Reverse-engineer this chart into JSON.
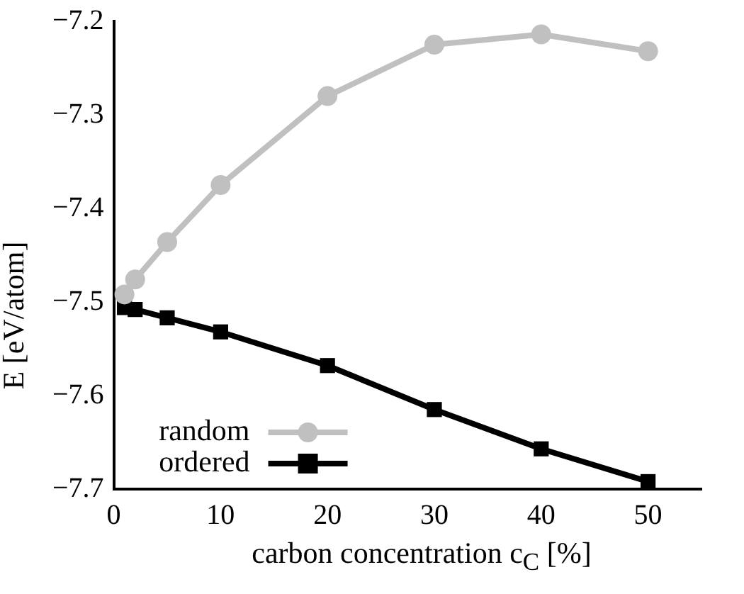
{
  "chart_data": {
    "type": "line",
    "xlabel": "carbon concentration c$_{C}$ [%]",
    "ylabel": "E [eV/atom]",
    "xlim": [
      0,
      55
    ],
    "xticks": [
      0,
      10,
      20,
      30,
      40,
      50
    ],
    "ylim": [
      -7.7,
      -7.2
    ],
    "yticks": [
      -7.7,
      -7.6,
      -7.5,
      -7.4,
      -7.3,
      -7.2
    ],
    "series": [
      {
        "name": "random",
        "color": "#c0c0c0",
        "marker": "circle",
        "x": [
          1,
          2,
          5,
          10,
          20,
          30,
          40,
          50
        ],
        "values": [
          -7.492,
          -7.476,
          -7.436,
          -7.375,
          -7.28,
          -7.225,
          -7.214,
          -7.232
        ]
      },
      {
        "name": "ordered",
        "color": "#000000",
        "marker": "square",
        "x": [
          1,
          2,
          5,
          10,
          20,
          30,
          40,
          50
        ],
        "values": [
          -7.506,
          -7.508,
          -7.517,
          -7.532,
          -7.568,
          -7.615,
          -7.657,
          -7.692
        ]
      }
    ],
    "grid": false,
    "legend": "bottom left",
    "line_style": "solid"
  }
}
